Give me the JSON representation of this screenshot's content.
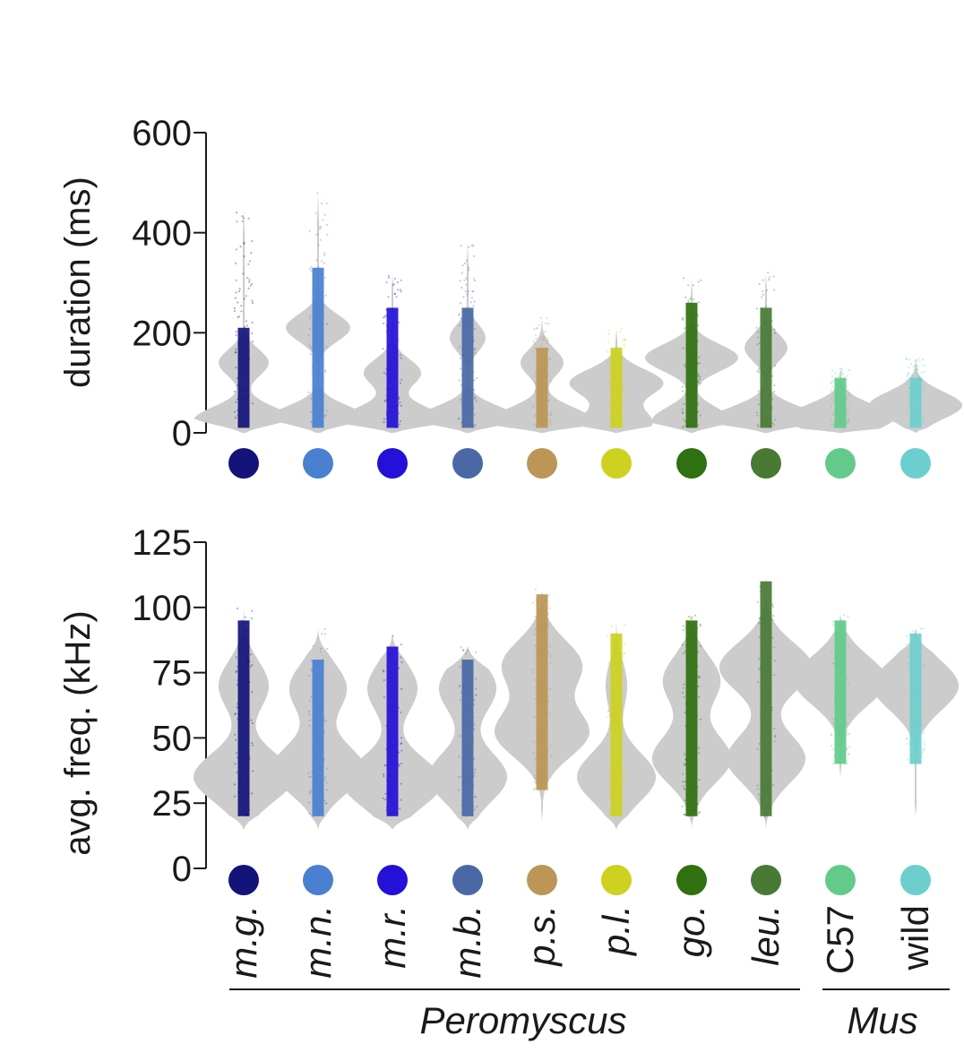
{
  "chart_data": [
    {
      "type": "violin",
      "ylabel": "duration (ms)",
      "ylim": [
        0,
        600
      ],
      "yticks": [
        0,
        200,
        400,
        600
      ],
      "categories": [
        "m.g.",
        "m.n.",
        "m.r.",
        "m.b.",
        "p.s.",
        "p.l.",
        "go.",
        "leu.",
        "C57",
        "wild"
      ],
      "colors": [
        "#14137a",
        "#4a80d0",
        "#2410d6",
        "#4a68a6",
        "#bb9656",
        "#cdd120",
        "#2f7010",
        "#497a34",
        "#62cb8b",
        "#6ccfcd"
      ],
      "series": [
        {
          "peaks": [
            [
              25,
              0.7
            ],
            [
              140,
              0.35
            ]
          ],
          "bar": [
            10,
            210
          ],
          "max": 450
        },
        {
          "peaks": [
            [
              25,
              0.75
            ],
            [
              210,
              0.45
            ]
          ],
          "bar": [
            10,
            330
          ],
          "max": 480
        },
        {
          "peaks": [
            [
              25,
              0.75
            ],
            [
              120,
              0.4
            ]
          ],
          "bar": [
            10,
            250
          ],
          "max": 320
        },
        {
          "peaks": [
            [
              25,
              0.75
            ],
            [
              190,
              0.25
            ]
          ],
          "bar": [
            10,
            250
          ],
          "max": 380
        },
        {
          "peaks": [
            [
              25,
              0.7
            ],
            [
              140,
              0.3
            ]
          ],
          "bar": [
            10,
            170
          ],
          "max": 230
        },
        {
          "peaks": [
            [
              20,
              0.5
            ],
            [
              100,
              0.65
            ]
          ],
          "bar": [
            10,
            170
          ],
          "max": 210
        },
        {
          "peaks": [
            [
              25,
              0.55
            ],
            [
              150,
              0.65
            ]
          ],
          "bar": [
            10,
            260
          ],
          "max": 310
        },
        {
          "peaks": [
            [
              25,
              0.8
            ],
            [
              170,
              0.3
            ]
          ],
          "bar": [
            10,
            250
          ],
          "max": 320
        },
        {
          "peaks": [
            [
              30,
              0.75
            ]
          ],
          "bar": [
            10,
            110
          ],
          "max": 130
        },
        {
          "peaks": [
            [
              55,
              0.65
            ]
          ],
          "bar": [
            10,
            110
          ],
          "max": 150
        }
      ]
    },
    {
      "type": "violin",
      "ylabel": "avg. freq. (kHz)",
      "ylim": [
        0,
        125
      ],
      "yticks": [
        0,
        25,
        50,
        75,
        100,
        125
      ],
      "categories": [
        "m.g.",
        "m.n.",
        "m.r.",
        "m.b.",
        "p.s.",
        "p.l.",
        "go.",
        "leu.",
        "C57",
        "wild"
      ],
      "colors": [
        "#14137a",
        "#4a80d0",
        "#2410d6",
        "#4a68a6",
        "#bb9656",
        "#cdd120",
        "#2f7010",
        "#497a34",
        "#62cb8b",
        "#6ccfcd"
      ],
      "series": [
        {
          "peaks": [
            [
              35,
              0.7
            ],
            [
              70,
              0.35
            ]
          ],
          "bar": [
            20,
            95
          ],
          "min": 15,
          "max": 100
        },
        {
          "peaks": [
            [
              38,
              0.65
            ],
            [
              69,
              0.4
            ]
          ],
          "bar": [
            20,
            80
          ],
          "min": 15,
          "max": 92
        },
        {
          "peaks": [
            [
              33,
              0.7
            ],
            [
              69,
              0.35
            ]
          ],
          "bar": [
            20,
            85
          ],
          "min": 15,
          "max": 90
        },
        {
          "peaks": [
            [
              35,
              0.55
            ],
            [
              69,
              0.4
            ]
          ],
          "bar": [
            20,
            80
          ],
          "min": 15,
          "max": 85
        },
        {
          "peaks": [
            [
              52,
              0.65
            ],
            [
              78,
              0.55
            ]
          ],
          "bar": [
            30,
            105
          ],
          "min": 18,
          "max": 107
        },
        {
          "peaks": [
            [
              35,
              0.55
            ],
            [
              70,
              0.15
            ]
          ],
          "bar": [
            20,
            90
          ],
          "min": 15,
          "max": 95
        },
        {
          "peaks": [
            [
              42,
              0.55
            ],
            [
              72,
              0.4
            ]
          ],
          "bar": [
            20,
            95
          ],
          "min": 15,
          "max": 97
        },
        {
          "peaks": [
            [
              42,
              0.55
            ],
            [
              77,
              0.65
            ]
          ],
          "bar": [
            20,
            110
          ],
          "min": 15,
          "max": 113
        },
        {
          "peaks": [
            [
              72,
              0.65
            ]
          ],
          "bar": [
            40,
            95
          ],
          "min": 35,
          "max": 98
        },
        {
          "peaks": [
            [
              70,
              0.6
            ]
          ],
          "bar": [
            40,
            90
          ],
          "min": 20,
          "max": 92
        }
      ]
    }
  ],
  "groups": [
    {
      "label": "Peromyscus",
      "from": 0,
      "to": 7
    },
    {
      "label": "Mus",
      "from": 8,
      "to": 9
    }
  ]
}
